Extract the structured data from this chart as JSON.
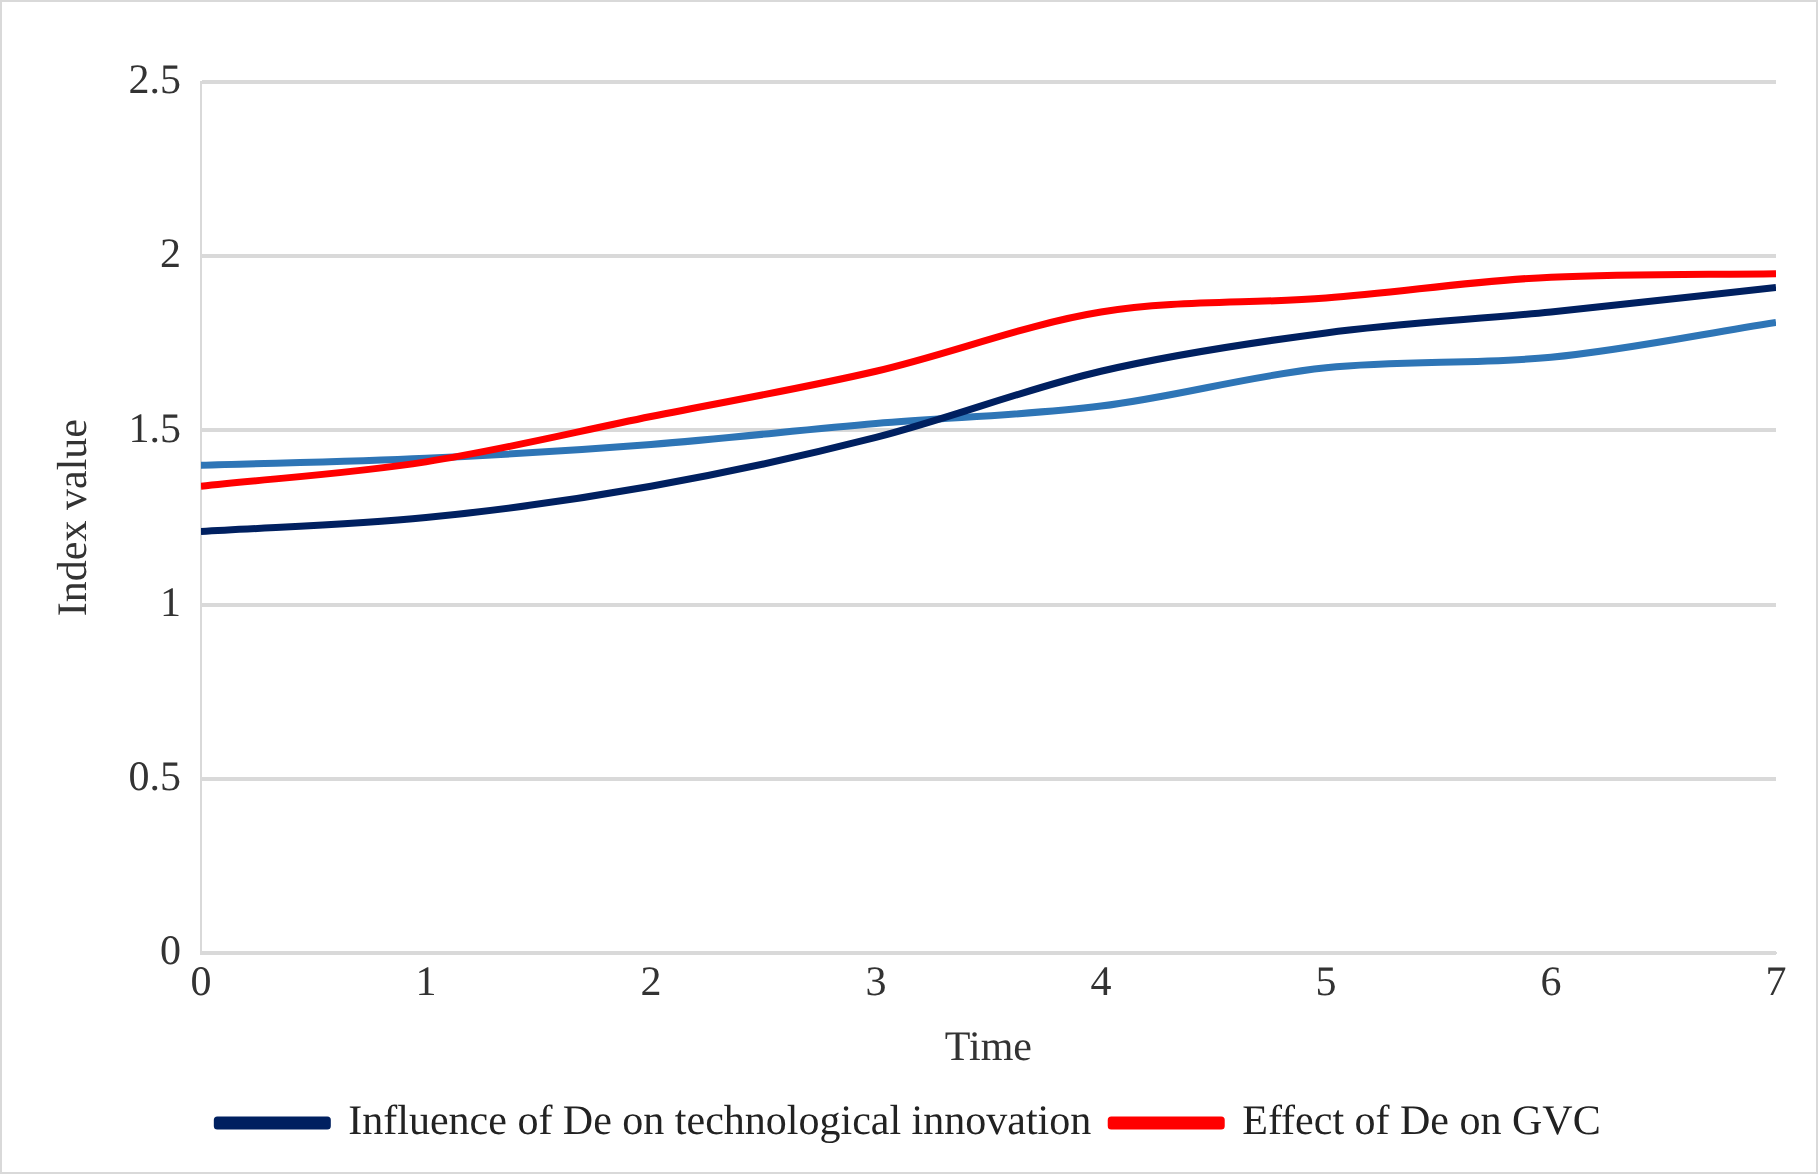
{
  "chart_data": {
    "type": "line",
    "xlabel": "Time",
    "ylabel": "Index value",
    "x": [
      0,
      1,
      2,
      3,
      4,
      5,
      6,
      7
    ],
    "series": [
      {
        "name": "Influence of De on technological innovation",
        "color": "#002060",
        "values": [
          1.21,
          1.25,
          1.34,
          1.48,
          1.67,
          1.78,
          1.84,
          1.91
        ]
      },
      {
        "name": "Effect of De on GVC",
        "color": "#ff0000",
        "values": [
          1.34,
          1.41,
          1.54,
          1.67,
          1.84,
          1.88,
          1.94,
          1.95
        ]
      },
      {
        "color": "#2e75b6",
        "values": [
          1.4,
          1.42,
          1.46,
          1.52,
          1.57,
          1.68,
          1.71,
          1.81
        ]
      }
    ],
    "xlim": [
      0,
      7
    ],
    "xticks": [
      0,
      1,
      2,
      3,
      4,
      5,
      6,
      7
    ],
    "ylim": [
      0,
      2.5
    ],
    "yticks": [
      0,
      0.5,
      1,
      1.5,
      2,
      2.5
    ],
    "grid": "y",
    "legend": "bottom",
    "marker": "none",
    "line_style": "solid"
  }
}
